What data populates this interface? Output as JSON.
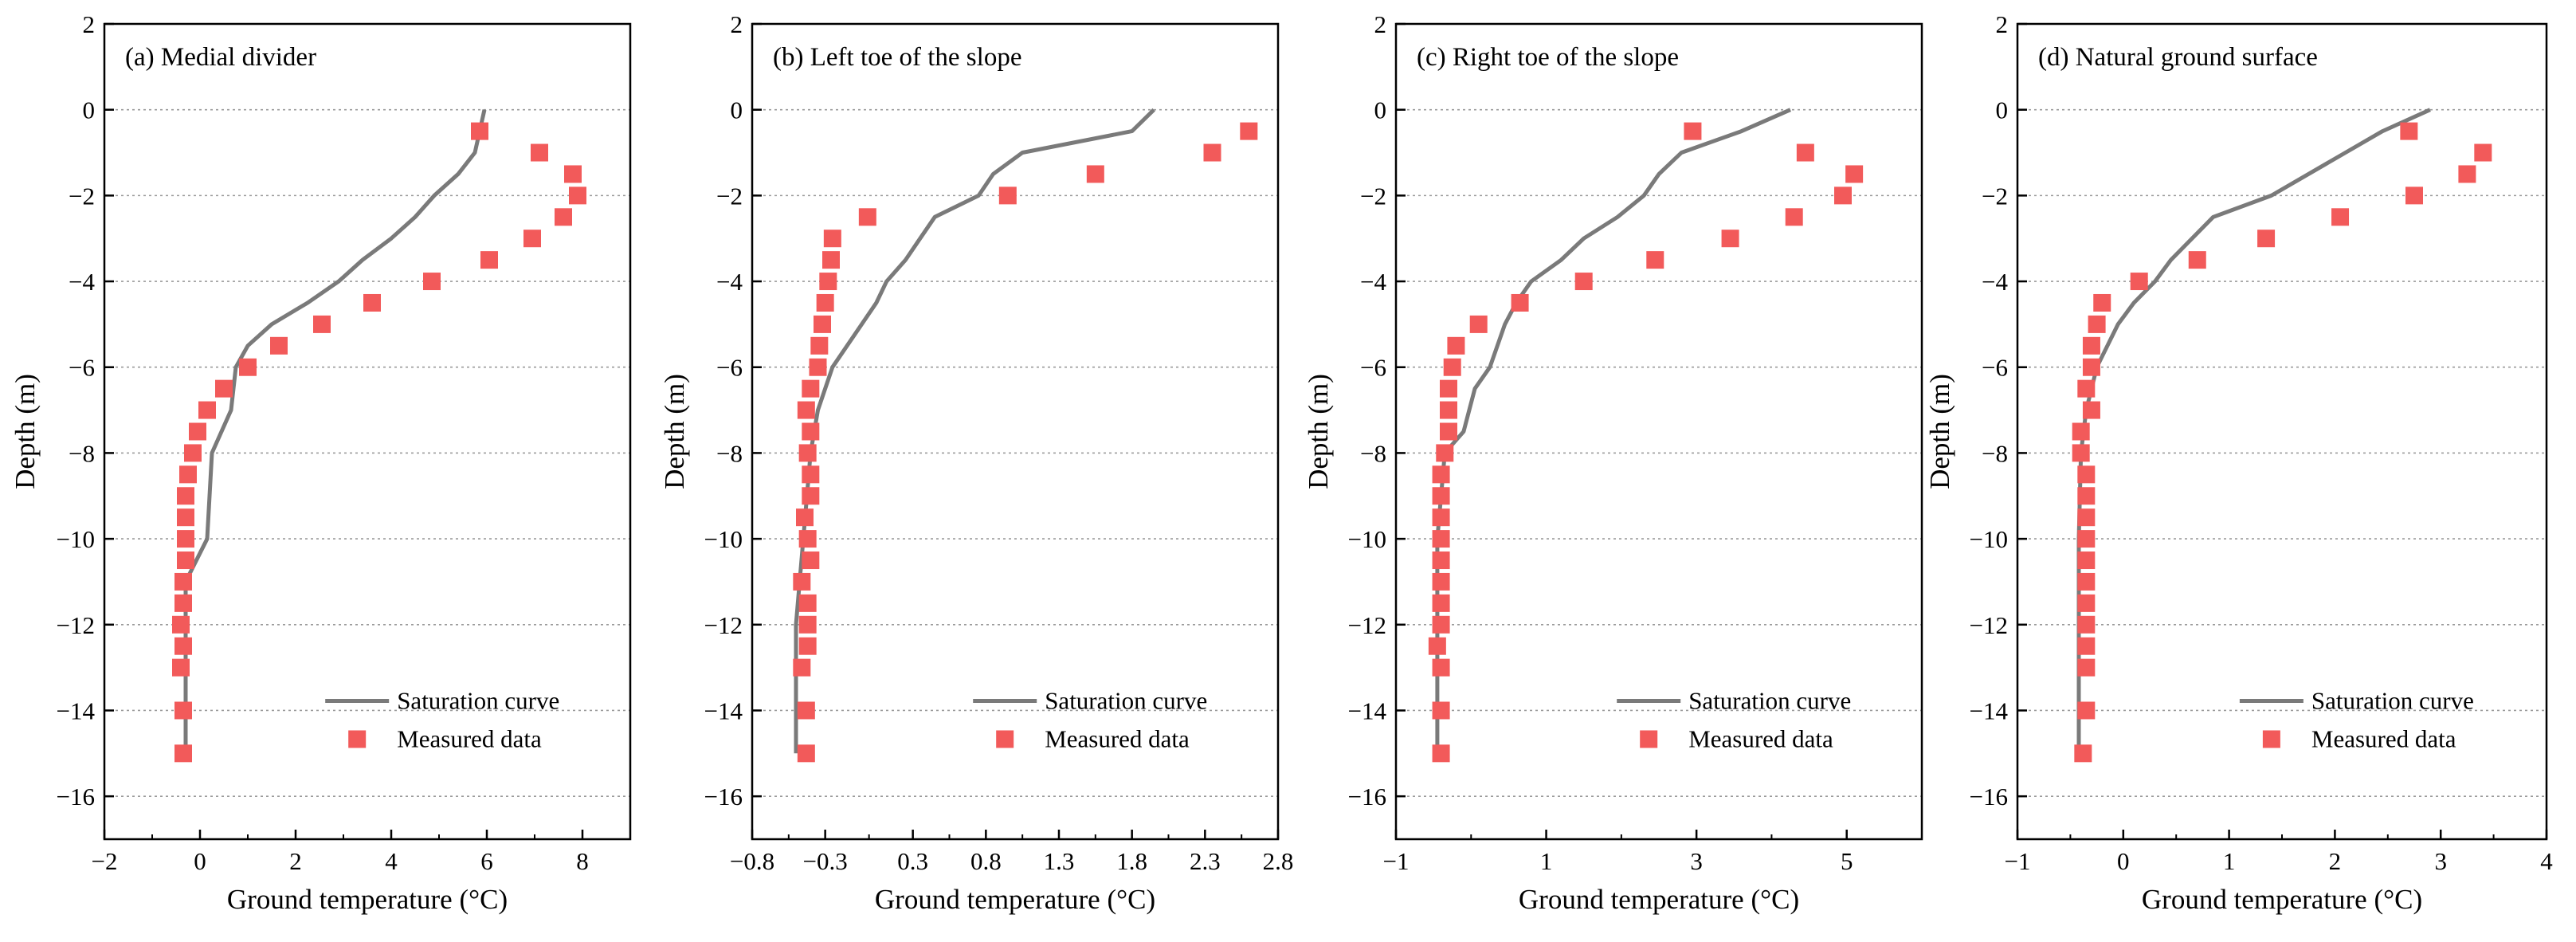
{
  "chart_data": [
    {
      "type": "line+scatter",
      "title": "(a) Medial divider",
      "xlabel": "Ground temperature (°C)",
      "ylabel": "Depth (m)",
      "xlim": [
        -2,
        9
      ],
      "ylim": [
        -17,
        2
      ],
      "xticks": [
        -2,
        0,
        2,
        4,
        6,
        8
      ],
      "xtick_labels": [
        "−2",
        "0",
        "2",
        "4",
        "6",
        "8"
      ],
      "yticks": [
        2,
        0,
        -2,
        -4,
        -6,
        -8,
        -10,
        -12,
        -14,
        -16
      ],
      "ytick_labels": [
        "2",
        "0",
        "−2",
        "−4",
        "−6",
        "−8",
        "−10",
        "−12",
        "−14",
        "−16"
      ],
      "grid": "horizontal-dotted",
      "legend_position": "bottom-right",
      "series": [
        {
          "name": "Saturation curve",
          "kind": "line",
          "color": "#7a7a7a",
          "points": [
            [
              5.95,
              0
            ],
            [
              5.75,
              -1
            ],
            [
              5.4,
              -1.5
            ],
            [
              4.9,
              -2
            ],
            [
              4.5,
              -2.5
            ],
            [
              4.0,
              -3
            ],
            [
              3.4,
              -3.5
            ],
            [
              2.9,
              -4
            ],
            [
              2.25,
              -4.5
            ],
            [
              1.5,
              -5
            ],
            [
              1.0,
              -5.5
            ],
            [
              0.75,
              -6
            ],
            [
              0.65,
              -7
            ],
            [
              0.25,
              -8
            ],
            [
              0.15,
              -10
            ],
            [
              -0.3,
              -11
            ],
            [
              -0.3,
              -15
            ]
          ]
        },
        {
          "name": "Measured data",
          "kind": "scatter",
          "color": "#f25a5a",
          "points": [
            [
              5.85,
              -0.5
            ],
            [
              7.1,
              -1
            ],
            [
              7.8,
              -1.5
            ],
            [
              7.9,
              -2
            ],
            [
              7.6,
              -2.5
            ],
            [
              6.95,
              -3
            ],
            [
              6.05,
              -3.5
            ],
            [
              4.85,
              -4
            ],
            [
              3.6,
              -4.5
            ],
            [
              2.55,
              -5
            ],
            [
              1.65,
              -5.5
            ],
            [
              1.0,
              -6
            ],
            [
              0.5,
              -6.5
            ],
            [
              0.15,
              -7
            ],
            [
              -0.05,
              -7.5
            ],
            [
              -0.15,
              -8
            ],
            [
              -0.25,
              -8.5
            ],
            [
              -0.3,
              -9
            ],
            [
              -0.3,
              -9.5
            ],
            [
              -0.3,
              -10
            ],
            [
              -0.3,
              -10.5
            ],
            [
              -0.35,
              -11
            ],
            [
              -0.35,
              -11.5
            ],
            [
              -0.4,
              -12
            ],
            [
              -0.35,
              -12.5
            ],
            [
              -0.4,
              -13
            ],
            [
              -0.35,
              -14
            ],
            [
              -0.35,
              -15
            ]
          ]
        }
      ]
    },
    {
      "type": "line+scatter",
      "title": "(b) Left toe of the slope",
      "xlabel": "Ground temperature (°C)",
      "ylabel": "Depth (m)",
      "xlim": [
        -0.8,
        2.8
      ],
      "ylim": [
        -17,
        2
      ],
      "xticks": [
        -0.8,
        -0.3,
        0.3,
        0.8,
        1.3,
        1.8,
        2.3,
        2.8
      ],
      "xtick_labels": [
        "−0.8",
        "−0.3",
        "0.3",
        "0.8",
        "1.3",
        "1.8",
        "2.3",
        "2.8"
      ],
      "yticks": [
        2,
        0,
        -2,
        -4,
        -6,
        -8,
        -10,
        -12,
        -14,
        -16
      ],
      "ytick_labels": [
        "2",
        "0",
        "−2",
        "−4",
        "−6",
        "−8",
        "−10",
        "−12",
        "−14",
        "−16"
      ],
      "grid": "horizontal-dotted",
      "legend_position": "bottom-right",
      "series": [
        {
          "name": "Saturation curve",
          "kind": "line",
          "color": "#7a7a7a",
          "points": [
            [
              1.95,
              0
            ],
            [
              1.8,
              -0.5
            ],
            [
              1.05,
              -1
            ],
            [
              0.85,
              -1.5
            ],
            [
              0.75,
              -2
            ],
            [
              0.45,
              -2.5
            ],
            [
              0.35,
              -3
            ],
            [
              0.25,
              -3.5
            ],
            [
              0.12,
              -4
            ],
            [
              0.05,
              -4.5
            ],
            [
              -0.05,
              -5
            ],
            [
              -0.25,
              -6
            ],
            [
              -0.35,
              -7
            ],
            [
              -0.4,
              -8
            ],
            [
              -0.45,
              -10
            ],
            [
              -0.5,
              -12
            ],
            [
              -0.5,
              -15
            ]
          ]
        },
        {
          "name": "Measured data",
          "kind": "scatter",
          "color": "#f25a5a",
          "points": [
            [
              2.6,
              -0.5
            ],
            [
              2.35,
              -1
            ],
            [
              1.55,
              -1.5
            ],
            [
              0.95,
              -2
            ],
            [
              -0.01,
              -2.5
            ],
            [
              -0.25,
              -3
            ],
            [
              -0.26,
              -3.5
            ],
            [
              -0.28,
              -4
            ],
            [
              -0.3,
              -4.5
            ],
            [
              -0.32,
              -5
            ],
            [
              -0.34,
              -5.5
            ],
            [
              -0.35,
              -6
            ],
            [
              -0.4,
              -6.5
            ],
            [
              -0.43,
              -7
            ],
            [
              -0.4,
              -7.5
            ],
            [
              -0.42,
              -8
            ],
            [
              -0.4,
              -8.5
            ],
            [
              -0.4,
              -9
            ],
            [
              -0.44,
              -9.5
            ],
            [
              -0.42,
              -10
            ],
            [
              -0.4,
              -10.5
            ],
            [
              -0.46,
              -11
            ],
            [
              -0.42,
              -11.5
            ],
            [
              -0.42,
              -12
            ],
            [
              -0.42,
              -12.5
            ],
            [
              -0.46,
              -13
            ],
            [
              -0.43,
              -14
            ],
            [
              -0.43,
              -15
            ]
          ]
        }
      ]
    },
    {
      "type": "line+scatter",
      "title": "(c) Right toe of the slope",
      "xlabel": "Ground temperature (°C)",
      "ylabel": "Depth (m)",
      "xlim": [
        -1,
        6
      ],
      "ylim": [
        -17,
        2
      ],
      "xticks": [
        -1,
        1,
        3,
        5
      ],
      "xtick_labels": [
        "−1",
        "1",
        "3",
        "5"
      ],
      "yticks": [
        2,
        0,
        -2,
        -4,
        -6,
        -8,
        -10,
        -12,
        -14,
        -16
      ],
      "ytick_labels": [
        "2",
        "0",
        "−2",
        "−4",
        "−6",
        "−8",
        "−10",
        "−12",
        "−14",
        "−16"
      ],
      "grid": "horizontal-dotted",
      "legend_position": "bottom-right",
      "series": [
        {
          "name": "Saturation curve",
          "kind": "line",
          "color": "#7a7a7a",
          "points": [
            [
              4.25,
              0
            ],
            [
              3.6,
              -0.5
            ],
            [
              2.8,
              -1
            ],
            [
              2.5,
              -1.5
            ],
            [
              2.3,
              -2
            ],
            [
              1.95,
              -2.5
            ],
            [
              1.5,
              -3
            ],
            [
              1.2,
              -3.5
            ],
            [
              0.8,
              -4
            ],
            [
              0.6,
              -4.5
            ],
            [
              0.45,
              -5
            ],
            [
              0.25,
              -6
            ],
            [
              0.05,
              -6.5
            ],
            [
              -0.1,
              -7.5
            ],
            [
              -0.35,
              -8
            ],
            [
              -0.4,
              -9
            ],
            [
              -0.45,
              -10
            ],
            [
              -0.45,
              -12
            ],
            [
              -0.45,
              -15
            ]
          ]
        },
        {
          "name": "Measured data",
          "kind": "scatter",
          "color": "#f25a5a",
          "points": [
            [
              2.95,
              -0.5
            ],
            [
              4.45,
              -1
            ],
            [
              5.1,
              -1.5
            ],
            [
              4.95,
              -2
            ],
            [
              4.3,
              -2.5
            ],
            [
              3.45,
              -3
            ],
            [
              2.45,
              -3.5
            ],
            [
              1.5,
              -4
            ],
            [
              0.65,
              -4.5
            ],
            [
              0.1,
              -5
            ],
            [
              -0.2,
              -5.5
            ],
            [
              -0.25,
              -6
            ],
            [
              -0.3,
              -6.5
            ],
            [
              -0.3,
              -7
            ],
            [
              -0.3,
              -7.5
            ],
            [
              -0.35,
              -8
            ],
            [
              -0.4,
              -8.5
            ],
            [
              -0.4,
              -9
            ],
            [
              -0.4,
              -9.5
            ],
            [
              -0.4,
              -10
            ],
            [
              -0.4,
              -10.5
            ],
            [
              -0.4,
              -11
            ],
            [
              -0.4,
              -11.5
            ],
            [
              -0.4,
              -12
            ],
            [
              -0.45,
              -12.5
            ],
            [
              -0.4,
              -13
            ],
            [
              -0.4,
              -14
            ],
            [
              -0.4,
              -15
            ]
          ]
        }
      ]
    },
    {
      "type": "line+scatter",
      "title": "(d) Natural ground surface",
      "xlabel": "Ground temperature (°C)",
      "ylabel": "Depth (m)",
      "xlim": [
        -1,
        4
      ],
      "ylim": [
        -17,
        2
      ],
      "xticks": [
        -1,
        0,
        1,
        2,
        3,
        4
      ],
      "xtick_labels": [
        "−1",
        "0",
        "1",
        "2",
        "3",
        "4"
      ],
      "yticks": [
        2,
        0,
        -2,
        -4,
        -6,
        -8,
        -10,
        -12,
        -14,
        -16
      ],
      "ytick_labels": [
        "2",
        "0",
        "−2",
        "−4",
        "−6",
        "−8",
        "−10",
        "−12",
        "−14",
        "−16"
      ],
      "grid": "horizontal-dotted",
      "legend_position": "bottom-right",
      "series": [
        {
          "name": "Saturation curve",
          "kind": "line",
          "color": "#7a7a7a",
          "points": [
            [
              2.9,
              0
            ],
            [
              2.45,
              -0.5
            ],
            [
              2.1,
              -1
            ],
            [
              1.75,
              -1.5
            ],
            [
              1.4,
              -2
            ],
            [
              0.85,
              -2.5
            ],
            [
              0.65,
              -3
            ],
            [
              0.45,
              -3.5
            ],
            [
              0.3,
              -4
            ],
            [
              0.1,
              -4.5
            ],
            [
              -0.05,
              -5
            ],
            [
              -0.15,
              -5.5
            ],
            [
              -0.25,
              -6
            ],
            [
              -0.3,
              -6.5
            ],
            [
              -0.35,
              -7
            ],
            [
              -0.4,
              -8
            ],
            [
              -0.42,
              -10
            ],
            [
              -0.42,
              -12
            ],
            [
              -0.42,
              -15
            ]
          ]
        },
        {
          "name": "Measured data",
          "kind": "scatter",
          "color": "#f25a5a",
          "points": [
            [
              2.7,
              -0.5
            ],
            [
              3.4,
              -1
            ],
            [
              3.25,
              -1.5
            ],
            [
              2.75,
              -2
            ],
            [
              2.05,
              -2.5
            ],
            [
              1.35,
              -3
            ],
            [
              0.7,
              -3.5
            ],
            [
              0.15,
              -4
            ],
            [
              -0.2,
              -4.5
            ],
            [
              -0.25,
              -5
            ],
            [
              -0.3,
              -5.5
            ],
            [
              -0.3,
              -6
            ],
            [
              -0.35,
              -6.5
            ],
            [
              -0.3,
              -7
            ],
            [
              -0.4,
              -7.5
            ],
            [
              -0.4,
              -8
            ],
            [
              -0.35,
              -8.5
            ],
            [
              -0.35,
              -9
            ],
            [
              -0.35,
              -9.5
            ],
            [
              -0.35,
              -10
            ],
            [
              -0.35,
              -10.5
            ],
            [
              -0.35,
              -11
            ],
            [
              -0.35,
              -11.5
            ],
            [
              -0.35,
              -12
            ],
            [
              -0.35,
              -12.5
            ],
            [
              -0.35,
              -13
            ],
            [
              -0.35,
              -14
            ],
            [
              -0.38,
              -15
            ]
          ]
        }
      ]
    }
  ]
}
